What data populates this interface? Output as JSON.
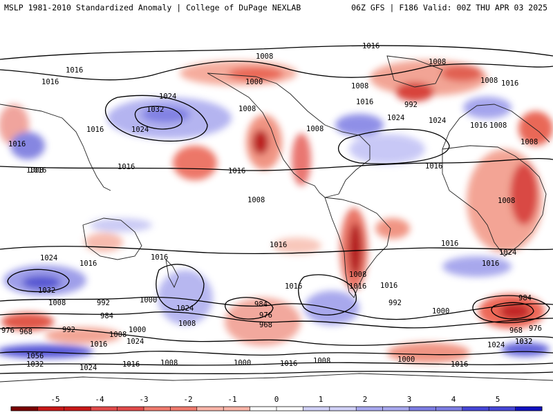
{
  "header": {
    "left": "MSLP 1981-2010 Standardized Anomaly | College of DuPage NEXLAB",
    "right": "06Z GFS | F186 Valid: 00Z THU APR 03 2025"
  },
  "colorbar": {
    "ticks": [
      "-5",
      "-4",
      "-3",
      "-2",
      "-1",
      "0",
      "1",
      "2",
      "3",
      "4",
      "5"
    ],
    "colors": [
      "#7a0000",
      "#c81818",
      "#e04a4a",
      "#ef7a6e",
      "#f8b4a8",
      "#ffffff",
      "#d0d0f6",
      "#a8a8ee",
      "#7c7ce2",
      "#4646d6",
      "#1010c0"
    ]
  },
  "isobar_labels": [
    "1016",
    "1008",
    "1016",
    "1000",
    "1008",
    "1008",
    "1016",
    "1016",
    "1024",
    "1032",
    "1008",
    "1008",
    "1024",
    "1016",
    "1016",
    "1016",
    "1008",
    "1024",
    "1024",
    "1016",
    "1016",
    "1008",
    "1008",
    "1016",
    "1016",
    "992",
    "1016",
    "1008",
    "1016",
    "1008",
    "1016",
    "1008",
    "1008",
    "1016",
    "1024",
    "1016",
    "1016",
    "1016",
    "1032",
    "992",
    "1000",
    "984",
    "976",
    "968",
    "1016",
    "1016",
    "1024",
    "1008",
    "984",
    "1024",
    "1008",
    "992",
    "1000",
    "984",
    "968",
    "976",
    "976",
    "968",
    "1000",
    "1008",
    "1016",
    "1024",
    "1032",
    "992",
    "1056",
    "1032",
    "1024",
    "1016",
    "1008",
    "1000",
    "1016",
    "1008",
    "1000",
    "1016",
    "1024",
    "1032"
  ],
  "colors": {
    "positive": "#e24a3c",
    "negative": "#5a5ad8",
    "contour": "#000000",
    "coast": "#222222"
  }
}
